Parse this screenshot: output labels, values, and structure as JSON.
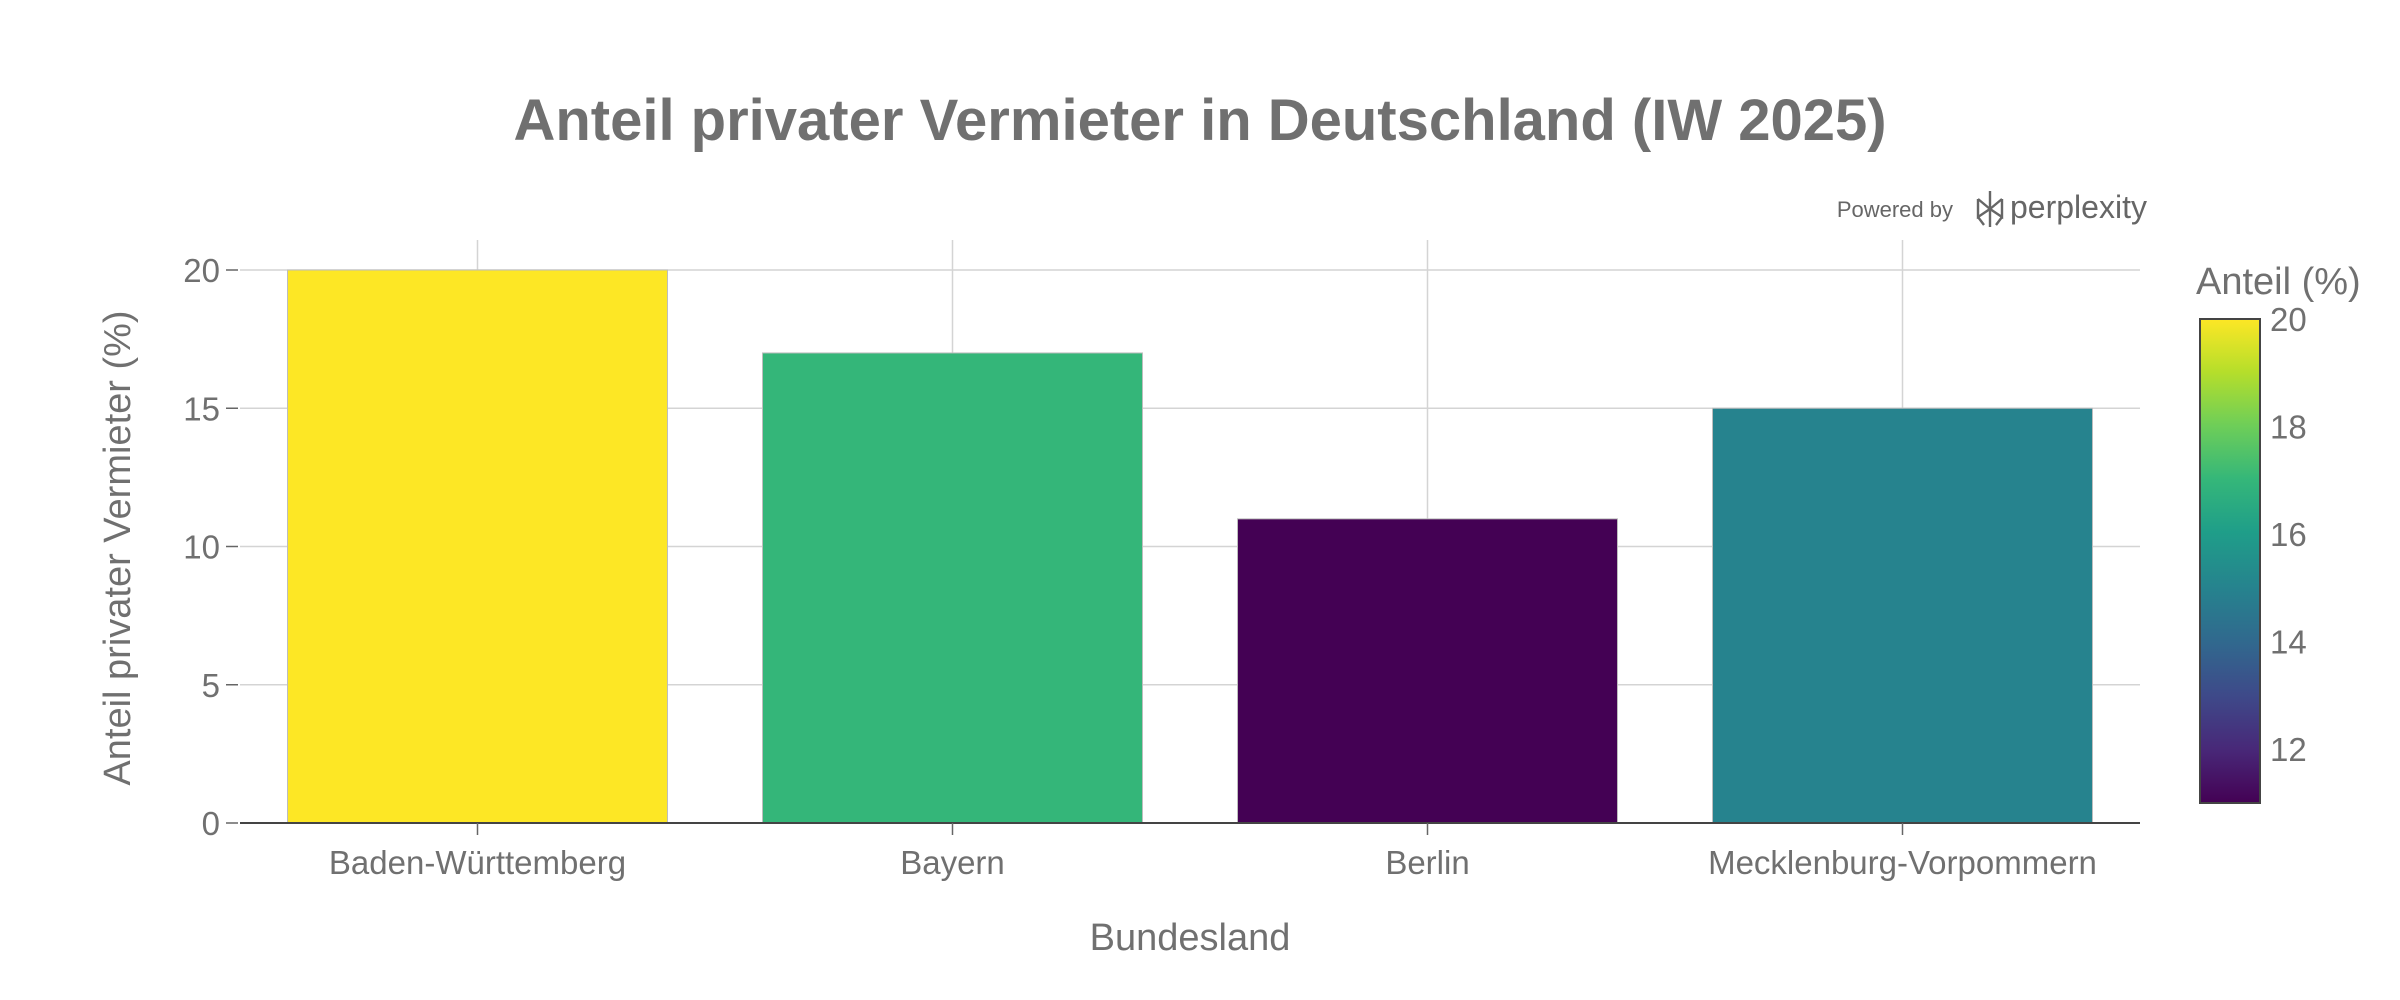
{
  "chart_data": {
    "type": "bar",
    "title": "Anteil privater Vermieter in Deutschland (IW 2025)",
    "xlabel": "Bundesland",
    "ylabel": "Anteil privater Vermieter (%)",
    "categories": [
      "Baden-Württemberg",
      "Bayern",
      "Berlin",
      "Mecklenburg-Vorpommern"
    ],
    "values": [
      20,
      17,
      11,
      15
    ],
    "ylim": [
      0,
      21
    ],
    "yticks": [
      0,
      5,
      10,
      15,
      20
    ],
    "grid": true,
    "colorscale": "viridis",
    "colorbar": {
      "title": "Anteil (%)",
      "range": [
        11,
        20
      ],
      "ticks": [
        12,
        14,
        16,
        18,
        20
      ],
      "placement": "right"
    }
  },
  "watermark": {
    "prefix": "Powered by",
    "brand": "perplexity",
    "icon": "perplexity-logo-icon"
  }
}
